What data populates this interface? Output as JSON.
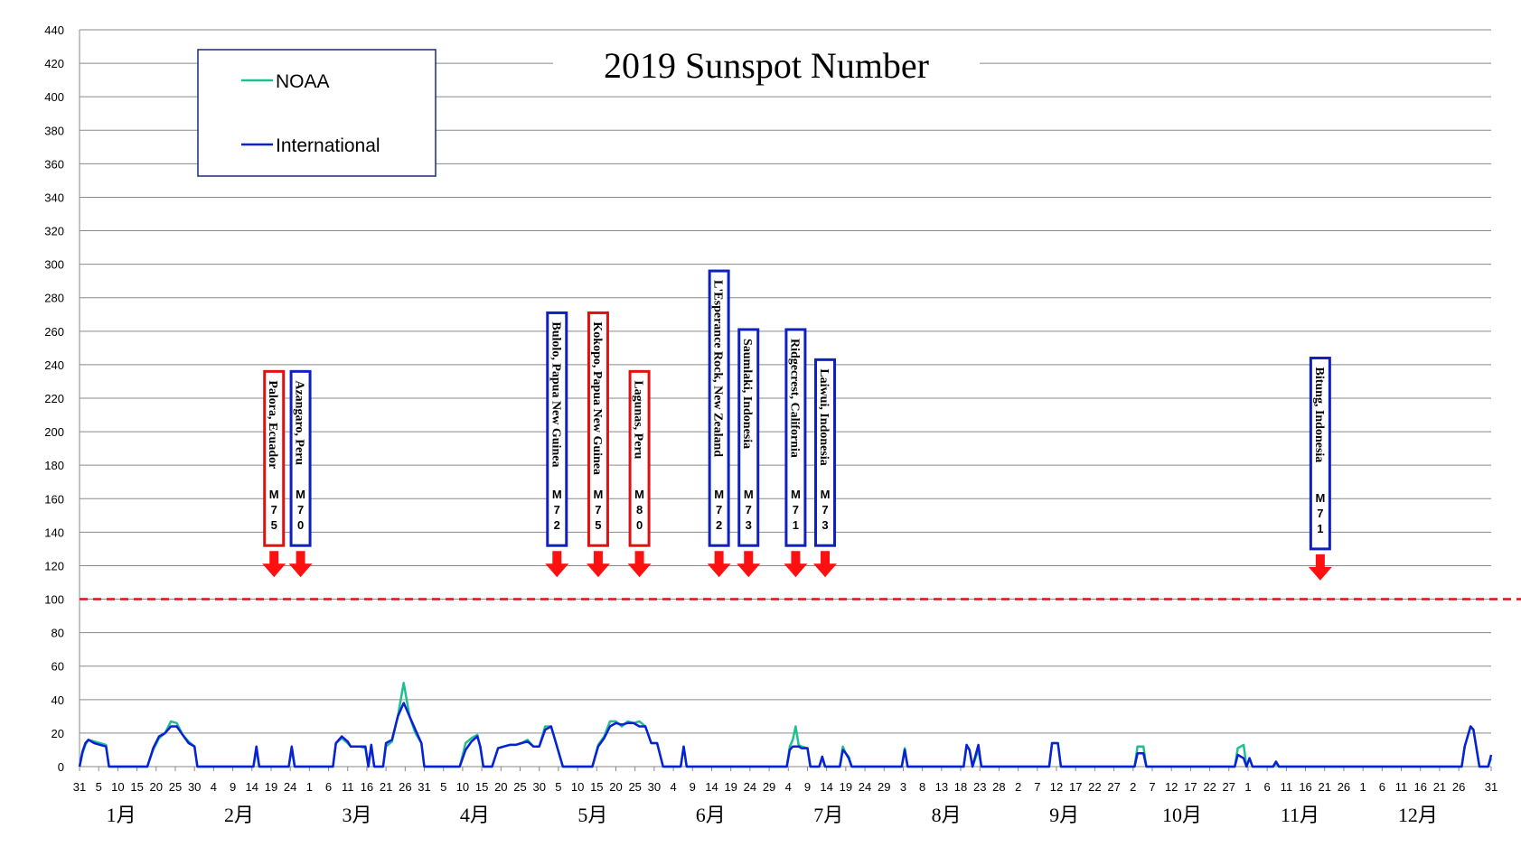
{
  "chart_data": {
    "type": "line",
    "title": "2019 Sunspot Number",
    "ylim": [
      0,
      440
    ],
    "yticks": [
      "0",
      "20",
      "40",
      "60",
      "80",
      "100",
      "120",
      "140",
      "160",
      "180",
      "200",
      "220",
      "240",
      "260",
      "280",
      "300",
      "320",
      "340",
      "360",
      "380",
      "400",
      "420",
      "440"
    ],
    "threshold": 100,
    "grid": true,
    "legend_position": "top-left",
    "months": [
      "1月",
      "2月",
      "3月",
      "4月",
      "5月",
      "6月",
      "7月",
      "8月",
      "9月",
      "10月",
      "11月",
      "12月"
    ],
    "x_tick_labels": [
      "31",
      "5",
      "10",
      "15",
      "20",
      "25",
      "30",
      "4",
      "9",
      "14",
      "19",
      "24",
      "1",
      "6",
      "11",
      "16",
      "21",
      "26",
      "31",
      "5",
      "10",
      "15",
      "20",
      "25",
      "30",
      "5",
      "10",
      "15",
      "20",
      "25",
      "30",
      "4",
      "9",
      "14",
      "19",
      "24",
      "29",
      "4",
      "9",
      "14",
      "19",
      "24",
      "29",
      "3",
      "8",
      "13",
      "18",
      "23",
      "28",
      "2",
      "7",
      "12",
      "17",
      "22",
      "27",
      "2",
      "7",
      "12",
      "17",
      "22",
      "27",
      "1",
      "6",
      "11",
      "16",
      "21",
      "26",
      "1",
      "6",
      "11",
      "16",
      "21",
      "26",
      "31"
    ],
    "series": [
      {
        "name": "NOAA",
        "color": "#1fbf8f",
        "points": [
          [
            0,
            0
          ],
          [
            1,
            8
          ],
          [
            2,
            13
          ],
          [
            3,
            16
          ],
          [
            5,
            15
          ],
          [
            7,
            14
          ],
          [
            9,
            13
          ],
          [
            10,
            0
          ],
          [
            23,
            0
          ],
          [
            25,
            10
          ],
          [
            27,
            17
          ],
          [
            29,
            20
          ],
          [
            31,
            27
          ],
          [
            33,
            26
          ],
          [
            35,
            19
          ],
          [
            37,
            15
          ],
          [
            39,
            12
          ],
          [
            40,
            0
          ],
          [
            59,
            0
          ],
          [
            60,
            10
          ],
          [
            61,
            0
          ],
          [
            71,
            0
          ],
          [
            72,
            10
          ],
          [
            73,
            0
          ],
          [
            86,
            0
          ],
          [
            87,
            14
          ],
          [
            89,
            17
          ],
          [
            91,
            14
          ],
          [
            92,
            12
          ],
          [
            95,
            12
          ],
          [
            97,
            11
          ],
          [
            98,
            0
          ],
          [
            99,
            13
          ],
          [
            100,
            0
          ],
          [
            103,
            0
          ],
          [
            104,
            12
          ],
          [
            106,
            15
          ],
          [
            108,
            30
          ],
          [
            110,
            50
          ],
          [
            112,
            30
          ],
          [
            114,
            20
          ],
          [
            116,
            14
          ],
          [
            117,
            0
          ],
          [
            129,
            0
          ],
          [
            131,
            14
          ],
          [
            133,
            17
          ],
          [
            135,
            19
          ],
          [
            136,
            11
          ],
          [
            137,
            0
          ],
          [
            140,
            0
          ],
          [
            142,
            11
          ],
          [
            144,
            12
          ],
          [
            146,
            13
          ],
          [
            148,
            13
          ],
          [
            150,
            14
          ],
          [
            152,
            16
          ],
          [
            154,
            12
          ],
          [
            156,
            12
          ],
          [
            158,
            24
          ],
          [
            160,
            24
          ],
          [
            162,
            12
          ],
          [
            164,
            0
          ],
          [
            174,
            0
          ],
          [
            176,
            13
          ],
          [
            178,
            18
          ],
          [
            180,
            27
          ],
          [
            182,
            27
          ],
          [
            184,
            24
          ],
          [
            186,
            27
          ],
          [
            188,
            26
          ],
          [
            190,
            27
          ],
          [
            192,
            24
          ],
          [
            194,
            14
          ],
          [
            196,
            14
          ],
          [
            198,
            0
          ],
          [
            204,
            0
          ],
          [
            205,
            12
          ],
          [
            206,
            0
          ],
          [
            240,
            0
          ],
          [
            241,
            12
          ],
          [
            242,
            16
          ],
          [
            243,
            24
          ],
          [
            244,
            13
          ],
          [
            245,
            12
          ],
          [
            247,
            11
          ],
          [
            248,
            0
          ],
          [
            251,
            0
          ],
          [
            252,
            5
          ],
          [
            253,
            0
          ],
          [
            258,
            0
          ],
          [
            259,
            12
          ],
          [
            260,
            8
          ],
          [
            261,
            6
          ],
          [
            262,
            0
          ],
          [
            279,
            0
          ],
          [
            280,
            11
          ],
          [
            281,
            0
          ],
          [
            300,
            0
          ],
          [
            301,
            12
          ],
          [
            302,
            10
          ],
          [
            303,
            0
          ],
          [
            305,
            10
          ],
          [
            306,
            0
          ],
          [
            329,
            0
          ],
          [
            330,
            14
          ],
          [
            332,
            14
          ],
          [
            333,
            0
          ],
          [
            358,
            0
          ],
          [
            359,
            12
          ],
          [
            361,
            12
          ],
          [
            362,
            0
          ],
          [
            392,
            0
          ],
          [
            393,
            11
          ],
          [
            395,
            13
          ],
          [
            396,
            0
          ],
          [
            397,
            5
          ],
          [
            398,
            0
          ],
          [
            405,
            0
          ],
          [
            406,
            2
          ],
          [
            407,
            0
          ],
          [
            469,
            0
          ],
          [
            470,
            12
          ],
          [
            472,
            24
          ],
          [
            473,
            22
          ],
          [
            475,
            0
          ],
          [
            478,
            0
          ],
          [
            479,
            5
          ]
        ]
      },
      {
        "name": "International",
        "color": "#0a1fd6",
        "points": [
          [
            0,
            0
          ],
          [
            1,
            9
          ],
          [
            2,
            14
          ],
          [
            3,
            16
          ],
          [
            5,
            14
          ],
          [
            7,
            13
          ],
          [
            9,
            12
          ],
          [
            10,
            0
          ],
          [
            23,
            0
          ],
          [
            25,
            11
          ],
          [
            27,
            18
          ],
          [
            29,
            20
          ],
          [
            31,
            24
          ],
          [
            33,
            24
          ],
          [
            35,
            19
          ],
          [
            37,
            14
          ],
          [
            39,
            12
          ],
          [
            40,
            0
          ],
          [
            59,
            0
          ],
          [
            60,
            12
          ],
          [
            61,
            0
          ],
          [
            71,
            0
          ],
          [
            72,
            12
          ],
          [
            73,
            0
          ],
          [
            86,
            0
          ],
          [
            87,
            14
          ],
          [
            89,
            18
          ],
          [
            91,
            15
          ],
          [
            92,
            12
          ],
          [
            95,
            12
          ],
          [
            97,
            12
          ],
          [
            98,
            0
          ],
          [
            99,
            13
          ],
          [
            100,
            0
          ],
          [
            103,
            0
          ],
          [
            104,
            14
          ],
          [
            106,
            16
          ],
          [
            108,
            30
          ],
          [
            110,
            38
          ],
          [
            112,
            30
          ],
          [
            114,
            22
          ],
          [
            116,
            14
          ],
          [
            117,
            0
          ],
          [
            129,
            0
          ],
          [
            131,
            10
          ],
          [
            133,
            15
          ],
          [
            135,
            18
          ],
          [
            136,
            12
          ],
          [
            137,
            0
          ],
          [
            140,
            0
          ],
          [
            142,
            11
          ],
          [
            144,
            12
          ],
          [
            146,
            13
          ],
          [
            148,
            13
          ],
          [
            150,
            14
          ],
          [
            152,
            15
          ],
          [
            154,
            12
          ],
          [
            156,
            12
          ],
          [
            158,
            22
          ],
          [
            160,
            24
          ],
          [
            162,
            12
          ],
          [
            164,
            0
          ],
          [
            174,
            0
          ],
          [
            176,
            12
          ],
          [
            178,
            17
          ],
          [
            180,
            24
          ],
          [
            182,
            26
          ],
          [
            184,
            25
          ],
          [
            186,
            26
          ],
          [
            188,
            26
          ],
          [
            190,
            24
          ],
          [
            192,
            24
          ],
          [
            194,
            14
          ],
          [
            196,
            14
          ],
          [
            198,
            0
          ],
          [
            204,
            0
          ],
          [
            205,
            12
          ],
          [
            206,
            0
          ],
          [
            240,
            0
          ],
          [
            241,
            10
          ],
          [
            242,
            12
          ],
          [
            243,
            12
          ],
          [
            244,
            12
          ],
          [
            245,
            11
          ],
          [
            247,
            11
          ],
          [
            248,
            0
          ],
          [
            251,
            0
          ],
          [
            252,
            6
          ],
          [
            253,
            0
          ],
          [
            258,
            0
          ],
          [
            259,
            10
          ],
          [
            260,
            8
          ],
          [
            261,
            5
          ],
          [
            262,
            0
          ],
          [
            279,
            0
          ],
          [
            280,
            10
          ],
          [
            281,
            0
          ],
          [
            300,
            0
          ],
          [
            301,
            13
          ],
          [
            302,
            10
          ],
          [
            303,
            0
          ],
          [
            305,
            13
          ],
          [
            306,
            0
          ],
          [
            329,
            0
          ],
          [
            330,
            14
          ],
          [
            332,
            14
          ],
          [
            333,
            0
          ],
          [
            358,
            0
          ],
          [
            359,
            8
          ],
          [
            361,
            8
          ],
          [
            362,
            0
          ],
          [
            392,
            0
          ],
          [
            393,
            7
          ],
          [
            395,
            5
          ],
          [
            396,
            0
          ],
          [
            397,
            5
          ],
          [
            398,
            0
          ],
          [
            405,
            0
          ],
          [
            406,
            3
          ],
          [
            407,
            0
          ],
          [
            469,
            0
          ],
          [
            470,
            12
          ],
          [
            472,
            24
          ],
          [
            473,
            22
          ],
          [
            475,
            0
          ],
          [
            478,
            0
          ],
          [
            479,
            7
          ]
        ]
      }
    ],
    "earthquakes": [
      {
        "place": "Palora, Ecuador",
        "mag": [
          "M",
          "7",
          "5"
        ],
        "border": "#e01010",
        "day": 66,
        "top": 236,
        "bottom": 132
      },
      {
        "place": "Azangaro, Peru",
        "mag": [
          "M",
          "7",
          "0"
        ],
        "border": "#1020c0",
        "day": 75,
        "top": 236,
        "bottom": 132
      },
      {
        "place": "Bulolo, Papua New Guinea",
        "mag": [
          "M",
          "7",
          "2"
        ],
        "border": "#1020c0",
        "day": 162,
        "top": 271,
        "bottom": 132
      },
      {
        "place": "Kokopo, Papua New Guinea",
        "mag": [
          "M",
          "7",
          "5"
        ],
        "border": "#e01010",
        "day": 176,
        "top": 271,
        "bottom": 132
      },
      {
        "place": "Lagunas, Peru",
        "mag": [
          "M",
          "8",
          "0"
        ],
        "border": "#e01010",
        "day": 190,
        "top": 236,
        "bottom": 132
      },
      {
        "place": "L'Esperance Rock, New Zealand",
        "mag": [
          "M",
          "7",
          "2"
        ],
        "border": "#1020c0",
        "day": 217,
        "top": 296,
        "bottom": 132
      },
      {
        "place": "Saumlaki, Indonesia",
        "mag": [
          "M",
          "7",
          "3"
        ],
        "border": "#1020c0",
        "day": 227,
        "top": 261,
        "bottom": 132
      },
      {
        "place": "Ridgecrest, California",
        "mag": [
          "M",
          "7",
          "1"
        ],
        "border": "#1020c0",
        "day": 243,
        "top": 261,
        "bottom": 132
      },
      {
        "place": "Laiwui, Indonesia",
        "mag": [
          "M",
          "7",
          "3"
        ],
        "border": "#1020c0",
        "day": 253,
        "top": 243,
        "bottom": 132
      },
      {
        "place": "Bitung, Indonesia",
        "mag": [
          "M",
          "7",
          "1"
        ],
        "border": "#1020c0",
        "day": 421,
        "top": 244,
        "bottom": 130
      }
    ],
    "arrow_color": "#ff1010"
  }
}
